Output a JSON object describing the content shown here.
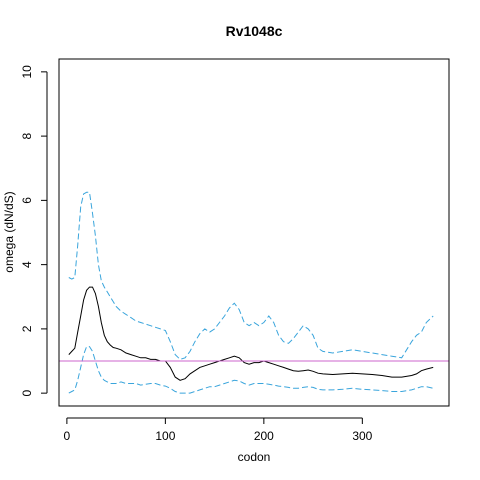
{
  "chart_data": {
    "type": "line",
    "title": "Rv1048c",
    "xlabel": "codon",
    "ylabel": "omega (dN/dS)",
    "xlim": [
      -8,
      388
    ],
    "ylim": [
      -0.4,
      10.4
    ],
    "x_ticks": [
      0,
      100,
      200,
      300
    ],
    "y_ticks": [
      0,
      2,
      4,
      6,
      8,
      10
    ],
    "reference_line": {
      "y": 1,
      "color": "#cc66cc"
    },
    "grid": false,
    "legend": "none",
    "series": [
      {
        "role": "estimate",
        "color": "#000000",
        "dash": "solid",
        "x": [
          2,
          5,
          8,
          11,
          14,
          17,
          20,
          23,
          26,
          29,
          32,
          35,
          38,
          41,
          44,
          47,
          50,
          55,
          60,
          65,
          70,
          75,
          80,
          85,
          90,
          95,
          100,
          105,
          110,
          115,
          120,
          125,
          130,
          135,
          140,
          145,
          150,
          155,
          160,
          165,
          170,
          175,
          180,
          185,
          190,
          195,
          200,
          205,
          210,
          215,
          220,
          225,
          230,
          235,
          240,
          245,
          250,
          255,
          260,
          270,
          280,
          290,
          300,
          310,
          320,
          330,
          340,
          350,
          355,
          360,
          365,
          372
        ],
        "y": [
          1.2,
          1.3,
          1.4,
          1.9,
          2.4,
          2.9,
          3.2,
          3.3,
          3.3,
          3.1,
          2.7,
          2.2,
          1.8,
          1.6,
          1.5,
          1.42,
          1.4,
          1.35,
          1.25,
          1.2,
          1.15,
          1.1,
          1.1,
          1.05,
          1.05,
          1.0,
          1.0,
          0.8,
          0.5,
          0.4,
          0.45,
          0.6,
          0.7,
          0.8,
          0.85,
          0.9,
          0.95,
          1.0,
          1.05,
          1.1,
          1.15,
          1.1,
          0.95,
          0.9,
          0.95,
          0.95,
          1.0,
          0.95,
          0.9,
          0.85,
          0.8,
          0.75,
          0.7,
          0.68,
          0.7,
          0.72,
          0.68,
          0.62,
          0.6,
          0.58,
          0.6,
          0.62,
          0.6,
          0.58,
          0.55,
          0.5,
          0.5,
          0.55,
          0.6,
          0.7,
          0.75,
          0.8
        ]
      },
      {
        "role": "upper bound",
        "color": "#3aa5dc",
        "dash": "dashed",
        "x": [
          2,
          5,
          8,
          11,
          14,
          17,
          20,
          23,
          26,
          29,
          32,
          35,
          38,
          41,
          44,
          47,
          50,
          55,
          60,
          65,
          70,
          75,
          80,
          85,
          90,
          95,
          100,
          105,
          110,
          115,
          120,
          125,
          130,
          135,
          140,
          145,
          150,
          155,
          160,
          165,
          170,
          175,
          180,
          185,
          190,
          195,
          200,
          205,
          210,
          215,
          220,
          225,
          230,
          235,
          240,
          245,
          250,
          255,
          260,
          270,
          280,
          290,
          300,
          310,
          320,
          330,
          340,
          350,
          355,
          360,
          365,
          372
        ],
        "y": [
          3.6,
          3.55,
          3.6,
          4.6,
          5.8,
          6.2,
          6.25,
          6.25,
          5.6,
          4.9,
          4.0,
          3.5,
          3.3,
          3.15,
          3.0,
          2.85,
          2.7,
          2.55,
          2.45,
          2.35,
          2.25,
          2.2,
          2.15,
          2.1,
          2.05,
          2.0,
          1.95,
          1.6,
          1.2,
          1.05,
          1.1,
          1.3,
          1.6,
          1.85,
          2.0,
          1.9,
          2.0,
          2.2,
          2.4,
          2.65,
          2.8,
          2.6,
          2.2,
          2.1,
          2.2,
          2.1,
          2.2,
          2.4,
          2.2,
          1.8,
          1.6,
          1.55,
          1.7,
          1.9,
          2.1,
          2.0,
          1.8,
          1.4,
          1.3,
          1.25,
          1.3,
          1.35,
          1.3,
          1.25,
          1.2,
          1.15,
          1.1,
          1.6,
          1.8,
          1.9,
          2.2,
          2.4
        ]
      },
      {
        "role": "lower bound",
        "color": "#3aa5dc",
        "dash": "dashed",
        "x": [
          2,
          5,
          8,
          11,
          14,
          17,
          20,
          23,
          26,
          29,
          32,
          35,
          38,
          41,
          44,
          47,
          50,
          55,
          60,
          65,
          70,
          75,
          80,
          85,
          90,
          95,
          100,
          105,
          110,
          115,
          120,
          125,
          130,
          135,
          140,
          145,
          150,
          155,
          160,
          165,
          170,
          175,
          180,
          185,
          190,
          195,
          200,
          205,
          210,
          215,
          220,
          225,
          230,
          235,
          240,
          245,
          250,
          255,
          260,
          270,
          280,
          290,
          300,
          310,
          320,
          330,
          340,
          350,
          355,
          360,
          365,
          372
        ],
        "y": [
          0.0,
          0.05,
          0.1,
          0.4,
          0.8,
          1.2,
          1.45,
          1.45,
          1.3,
          1.0,
          0.7,
          0.5,
          0.4,
          0.35,
          0.3,
          0.3,
          0.3,
          0.35,
          0.3,
          0.3,
          0.3,
          0.25,
          0.28,
          0.3,
          0.3,
          0.25,
          0.22,
          0.15,
          0.05,
          0.0,
          0.0,
          0.0,
          0.05,
          0.1,
          0.15,
          0.2,
          0.2,
          0.25,
          0.3,
          0.35,
          0.4,
          0.38,
          0.3,
          0.25,
          0.3,
          0.3,
          0.3,
          0.28,
          0.25,
          0.22,
          0.2,
          0.18,
          0.15,
          0.15,
          0.18,
          0.2,
          0.18,
          0.12,
          0.1,
          0.1,
          0.12,
          0.15,
          0.12,
          0.1,
          0.08,
          0.05,
          0.05,
          0.1,
          0.15,
          0.2,
          0.2,
          0.15
        ]
      }
    ]
  }
}
